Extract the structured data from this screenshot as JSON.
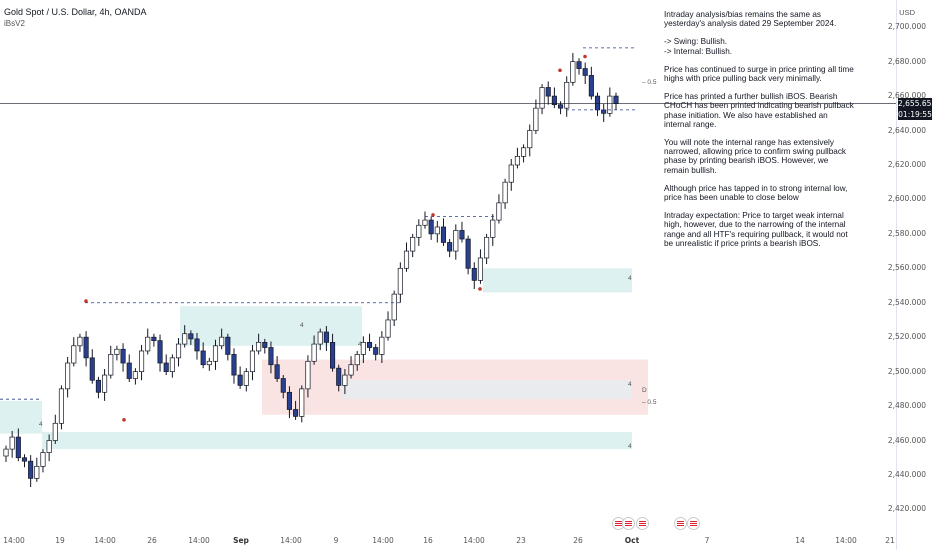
{
  "header": {
    "symbol": "Gold Spot / U.S. Dollar, 4h, OANDA",
    "indicator": "iBsV2"
  },
  "price_axis": {
    "currency": "USD",
    "ticks": [
      "2,700.000",
      "2,680.000",
      "2,660.000",
      "2,640.000",
      "2,620.000",
      "2,600.000",
      "2,580.000",
      "2,560.000",
      "2,540.000",
      "2,520.000",
      "2,500.000",
      "2,480.000",
      "2,460.000",
      "2,440.000",
      "2,420.000"
    ],
    "last_price": "2,655.655",
    "countdown": "01:19:55"
  },
  "time_axis": {
    "ticks": [
      "14:00",
      "19",
      "14:00",
      "26",
      "14:00",
      "Sep",
      "14:00",
      "9",
      "14:00",
      "16",
      "14:00",
      "23",
      "26",
      "Oct",
      "7",
      "14",
      "14:00",
      "21"
    ]
  },
  "analysis": [
    "Intraday analysis/bias remains the same as yesterday's analysis dated 29 September 2024.",
    "-> Swing:  Bullish.\n-> Internal:  Bullish.",
    "Price has continued to surge in price printing all time highs with price pulling back very minimally.",
    "Price has printed a further bullish iBOS. Bearish CHoCH has been printed indicating bearish pullback phase initiation.  We also have established an internal range.",
    "You will note the internal range has extensively narrowed, allowing price to confirm swing pullback phase by printing bearish iBOS. However, we remain bullish.",
    "Although price has tapped in to strong internal low, price has been unable to close below",
    "Intraday expectation:  Price to target weak internal high, however, due to the narrowing of the internal range and all HTF's requiring pullback, it would not be unrealistic if price prints a bearish iBOS."
  ],
  "zone_labels": {
    "z1": "4",
    "z2": "4",
    "z3": "4",
    "z4": "4",
    "z5": "4",
    "z6": "4",
    "fib_half_1": "0.5",
    "fib_half_2": "0.5",
    "d_marker": "D"
  },
  "colors": {
    "bull": "#ffffff",
    "bear": "#2a3f8f",
    "wick": "#131722",
    "demand_zone": "#d7efef",
    "supply_zone": "#f9dede",
    "structure_line": "#2a3f8f"
  },
  "chart_data": {
    "type": "candlestick",
    "symbol": "XAUUSD",
    "timeframe": "4h",
    "ylim": [
      2415,
      2710
    ],
    "close_path": [
      2455,
      2462,
      2450,
      2448,
      2438,
      2445,
      2453,
      2460,
      2470,
      2490,
      2505,
      2515,
      2520,
      2508,
      2495,
      2488,
      2498,
      2510,
      2513,
      2505,
      2496,
      2500,
      2512,
      2520,
      2518,
      2505,
      2500,
      2508,
      2516,
      2522,
      2519,
      2512,
      2504,
      2506,
      2515,
      2520,
      2510,
      2498,
      2492,
      2500,
      2512,
      2517,
      2514,
      2504,
      2496,
      2488,
      2478,
      2474,
      2490,
      2506,
      2516,
      2523,
      2517,
      2502,
      2492,
      2498,
      2504,
      2510,
      2517,
      2514,
      2510,
      2520,
      2530,
      2545,
      2560,
      2570,
      2578,
      2585,
      2588,
      2580,
      2584,
      2575,
      2570,
      2582,
      2577,
      2560,
      2553,
      2566,
      2578,
      2588,
      2598,
      2610,
      2620,
      2625,
      2630,
      2640,
      2653,
      2665,
      2660,
      2655,
      2653,
      2668,
      2680,
      2676,
      2672,
      2660,
      2652,
      2650,
      2660,
      2655.655
    ],
    "last": 2655.655
  }
}
